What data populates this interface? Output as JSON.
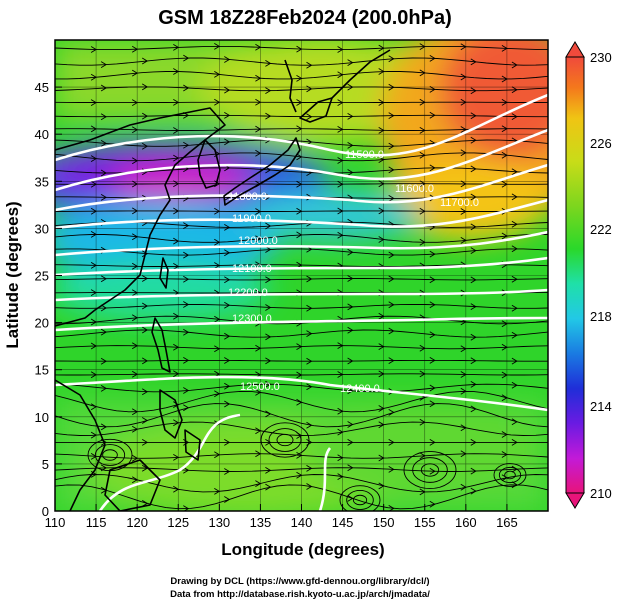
{
  "title": "GSM 18Z28Feb2024 (200.0hPa)",
  "x_axis": {
    "label": "Longitude (degrees)",
    "ticks": [
      "110",
      "115",
      "120",
      "125",
      "130",
      "135",
      "140",
      "145",
      "150",
      "155",
      "160",
      "165"
    ]
  },
  "y_axis": {
    "label": "Latitude (degrees)",
    "ticks": [
      "0",
      "5",
      "10",
      "15",
      "20",
      "25",
      "30",
      "35",
      "40",
      "45"
    ]
  },
  "colorbar": {
    "labels": [
      "230",
      "226",
      "222",
      "218",
      "214",
      "210"
    ],
    "colors": [
      "#e8147a",
      "#c21ad8",
      "#6a1be2",
      "#1f2ed8",
      "#1a7be2",
      "#22c8e6",
      "#1fe0a8",
      "#2ad82a",
      "#7ed61e",
      "#c8dc18",
      "#f0c414",
      "#f4781c",
      "#f04a3c"
    ]
  },
  "contour_labels": [
    "11500.0",
    "11600.0",
    "11700.0",
    "11800.0",
    "11900.0",
    "12000.0",
    "12100.0",
    "12200.0",
    "12300.0",
    "12400.0",
    "12500.0"
  ],
  "footer": {
    "line1": "Drawing by DCL (https://www.gfd-dennou.org/library/dcl/)",
    "line2": "Data from http://database.rish.kyoto-u.ac.jp/arch/jmadata/"
  }
}
